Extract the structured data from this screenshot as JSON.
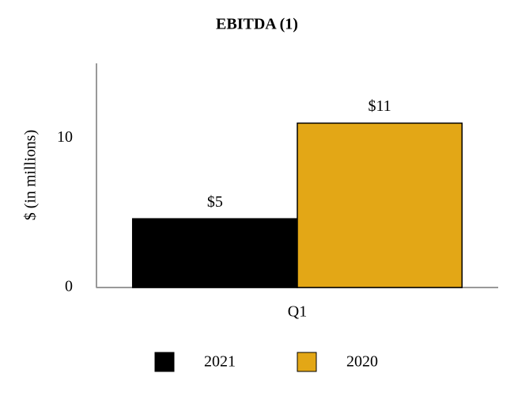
{
  "chart_data": {
    "type": "bar",
    "title": "EBITDA (1)",
    "y_label": "$ (in millions)",
    "categories": [
      "Q1"
    ],
    "series": [
      {
        "name": "2021",
        "color": "#000000",
        "values": [
          4.6
        ],
        "value_labels": [
          "$5"
        ]
      },
      {
        "name": "2020",
        "color": "#e3a716",
        "values": [
          11
        ],
        "value_labels": [
          "$11"
        ]
      }
    ],
    "ylim": [
      0,
      15
    ],
    "yticks": [
      0,
      10
    ]
  }
}
